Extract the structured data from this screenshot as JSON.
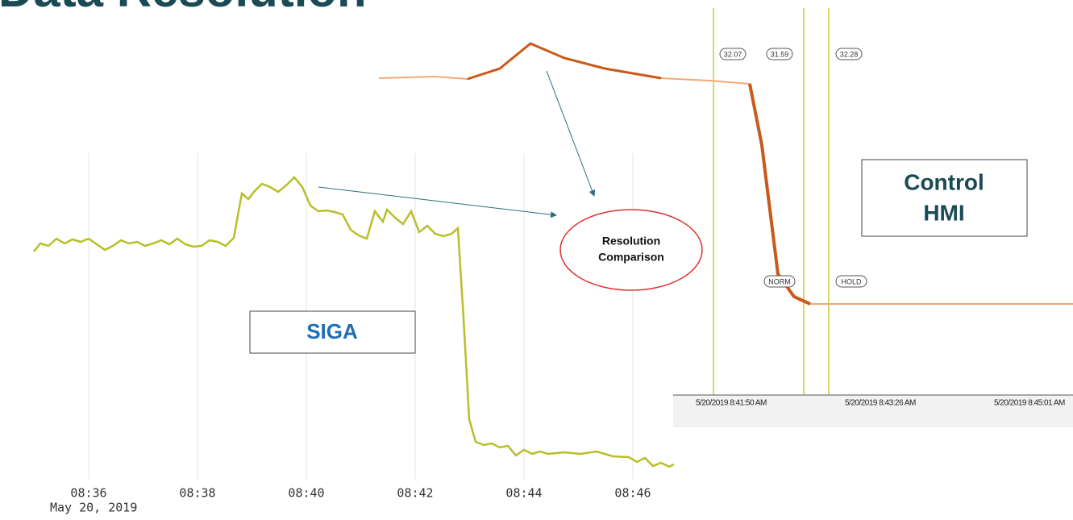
{
  "title": "Data Resolution",
  "siga": {
    "label": "SIGA",
    "xticks": [
      "08:36",
      "08:38",
      "08:40",
      "08:42",
      "08:44",
      "08:46"
    ],
    "date": "May 20, 2019"
  },
  "hmi": {
    "label": [
      "Control",
      "HMI"
    ],
    "xticks": [
      "5/20/2019 8:41:50 AM",
      "5/20/2019 8:43:26 AM",
      "5/20/2019 8:45:01 AM"
    ],
    "cursor_values": [
      "32.07",
      "31.59",
      "32.28"
    ],
    "modes": [
      "NORM",
      "HOLD"
    ]
  },
  "callout": [
    "Resolution",
    "Comparison"
  ]
}
